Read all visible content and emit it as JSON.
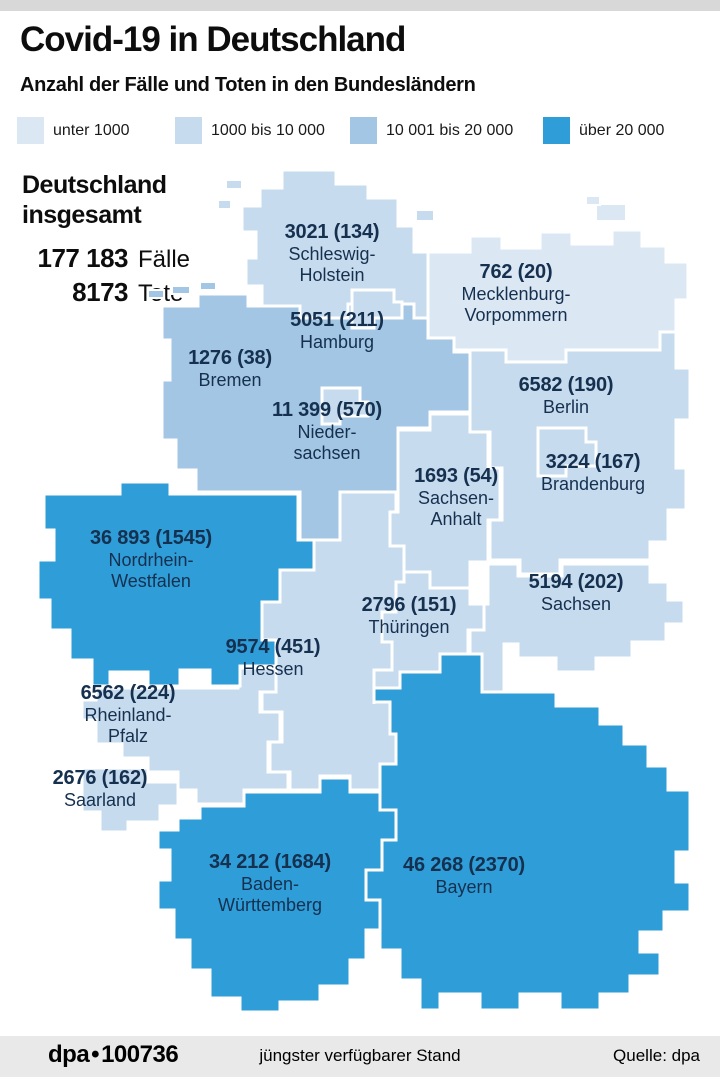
{
  "header": {
    "title": "Covid-19 in Deutschland",
    "subtitle": "Anzahl der Fälle und Toten in den Bundesländern"
  },
  "legend": {
    "items": [
      {
        "label": "unter 1000",
        "color": "#dbe8f4"
      },
      {
        "label": "1000 bis 10 000",
        "color": "#c7dbee"
      },
      {
        "label": "10 001 bis 20 000",
        "color": "#a3c6e4"
      },
      {
        "label": "über 20 000",
        "color": "#2e9dd8"
      }
    ],
    "border_color": "#ffffff"
  },
  "totals": {
    "title_line1": "Deutschland",
    "title_line2": "insgesamt",
    "rows": [
      {
        "value": "177 183",
        "label": "Fälle"
      },
      {
        "value": "8173",
        "label": "Tote"
      }
    ]
  },
  "chart_data": {
    "type": "choropleth",
    "title": "Covid-19 in Deutschland",
    "subtitle": "Anzahl der Fälle und Toten in den Bundesländern",
    "bins": [
      "unter 1000",
      "1000 bis 10 000",
      "10 001 bis 20 000",
      "über 20 000"
    ],
    "total_cases": 177183,
    "total_deaths": 8173,
    "states": [
      {
        "id": "sh",
        "name": "Schleswig-Holstein",
        "value_text": "3021 (134)",
        "name_lines": [
          "Schleswig-",
          "Holstein"
        ],
        "cases": 3021,
        "deaths": 134,
        "bin": 1
      },
      {
        "id": "mv",
        "name": "Mecklenburg-Vorpommern",
        "value_text": "762 (20)",
        "name_lines": [
          "Mecklenburg-",
          "Vorpommern"
        ],
        "cases": 762,
        "deaths": 20,
        "bin": 0
      },
      {
        "id": "hh",
        "name": "Hamburg",
        "value_text": "5051 (211)",
        "name_lines": [
          "Hamburg"
        ],
        "cases": 5051,
        "deaths": 211,
        "bin": 1
      },
      {
        "id": "hb",
        "name": "Bremen",
        "value_text": "1276 (38)",
        "name_lines": [
          "Bremen"
        ],
        "cases": 1276,
        "deaths": 38,
        "bin": 1
      },
      {
        "id": "nds",
        "name": "Niedersachsen",
        "value_text": "11 399 (570)",
        "name_lines": [
          "Nieder-",
          "sachsen"
        ],
        "cases": 11399,
        "deaths": 570,
        "bin": 2
      },
      {
        "id": "be",
        "name": "Berlin",
        "value_text": "6582 (190)",
        "name_lines": [
          "Berlin"
        ],
        "cases": 6582,
        "deaths": 190,
        "bin": 1
      },
      {
        "id": "bb",
        "name": "Brandenburg",
        "value_text": "3224 (167)",
        "name_lines": [
          "Brandenburg"
        ],
        "cases": 3224,
        "deaths": 167,
        "bin": 1
      },
      {
        "id": "st",
        "name": "Sachsen-Anhalt",
        "value_text": "1693 (54)",
        "name_lines": [
          "Sachsen-",
          "Anhalt"
        ],
        "cases": 1693,
        "deaths": 54,
        "bin": 1
      },
      {
        "id": "nrw",
        "name": "Nordrhein-Westfalen",
        "value_text": "36 893 (1545)",
        "name_lines": [
          "Nordrhein-",
          "Westfalen"
        ],
        "cases": 36893,
        "deaths": 1545,
        "bin": 3
      },
      {
        "id": "sn",
        "name": "Sachsen",
        "value_text": "5194 (202)",
        "name_lines": [
          "Sachsen"
        ],
        "cases": 5194,
        "deaths": 202,
        "bin": 1
      },
      {
        "id": "th",
        "name": "Thüringen",
        "value_text": "2796 (151)",
        "name_lines": [
          "Thüringen"
        ],
        "cases": 2796,
        "deaths": 151,
        "bin": 1
      },
      {
        "id": "he",
        "name": "Hessen",
        "value_text": "9574 (451)",
        "name_lines": [
          "Hessen"
        ],
        "cases": 9574,
        "deaths": 451,
        "bin": 1
      },
      {
        "id": "rp",
        "name": "Rheinland-Pfalz",
        "value_text": "6562 (224)",
        "name_lines": [
          "Rheinland-",
          "Pfalz"
        ],
        "cases": 6562,
        "deaths": 224,
        "bin": 1
      },
      {
        "id": "sl",
        "name": "Saarland",
        "value_text": "2676 (162)",
        "name_lines": [
          "Saarland"
        ],
        "cases": 2676,
        "deaths": 162,
        "bin": 1
      },
      {
        "id": "bw",
        "name": "Baden-Württemberg",
        "value_text": "34 212 (1684)",
        "name_lines": [
          "Baden-",
          "Württemberg"
        ],
        "cases": 34212,
        "deaths": 1684,
        "bin": 3
      },
      {
        "id": "by",
        "name": "Bayern",
        "value_text": "46 268 (2370)",
        "name_lines": [
          "Bayern"
        ],
        "cases": 46268,
        "deaths": 2370,
        "bin": 3
      }
    ]
  },
  "footer": {
    "logo": "dpa",
    "bullet": "•",
    "code": "100736",
    "center_note": "jüngster verfügbarer Stand",
    "source": "Quelle: dpa"
  }
}
